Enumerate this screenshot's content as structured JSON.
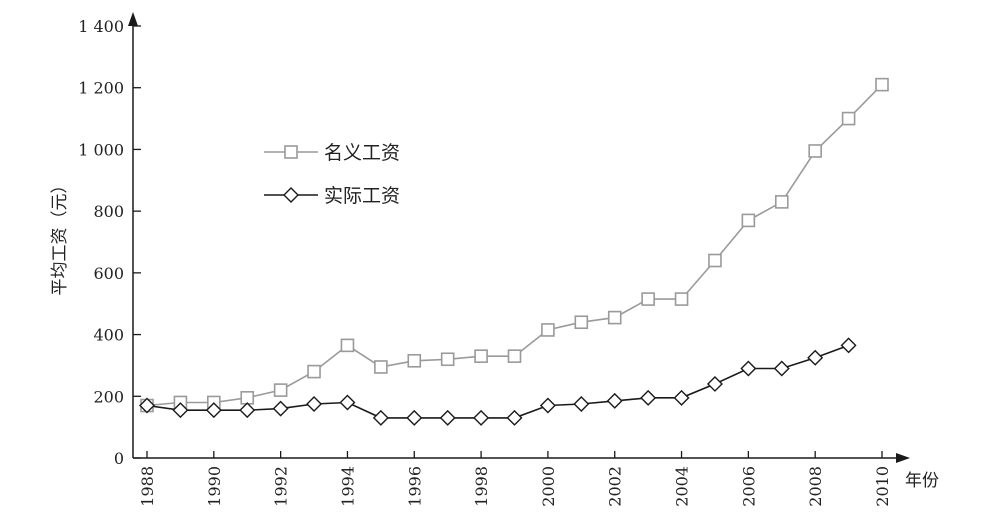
{
  "chart_data": {
    "type": "line",
    "xlabel": "年份",
    "ylabel": "平均工资（元）",
    "xlim": [
      1988,
      2010
    ],
    "ylim": [
      0,
      1400
    ],
    "x_ticks": [
      1988,
      1990,
      1992,
      1994,
      1996,
      1998,
      2000,
      2002,
      2004,
      2006,
      2008,
      2010
    ],
    "y_ticks": [
      0,
      200,
      400,
      600,
      800,
      1000,
      1200,
      1400
    ],
    "y_tick_labels": [
      "0",
      "200",
      "400",
      "600",
      "800",
      "1 000",
      "1 200",
      "1 400"
    ],
    "x_tick_labels": [
      "1988",
      "1990",
      "1992",
      "1994",
      "1996",
      "1998",
      "2000",
      "2002",
      "2004",
      "2006",
      "2008",
      "2010"
    ],
    "grid": false,
    "legend_position": "upper-left",
    "series": [
      {
        "name": "名义工资",
        "marker": "square",
        "color": "#9a9a9a",
        "x": [
          1988,
          1989,
          1990,
          1991,
          1992,
          1993,
          1994,
          1995,
          1996,
          1997,
          1998,
          1999,
          2000,
          2001,
          2002,
          2003,
          2004,
          2005,
          2006,
          2007,
          2008,
          2009,
          2010
        ],
        "values": [
          170,
          180,
          180,
          195,
          220,
          280,
          365,
          295,
          315,
          320,
          330,
          330,
          415,
          440,
          455,
          515,
          515,
          640,
          770,
          830,
          995,
          1100,
          1210
        ]
      },
      {
        "name": "实际工资",
        "marker": "diamond",
        "color": "#1a1a1a",
        "x": [
          1988,
          1989,
          1990,
          1991,
          1992,
          1993,
          1994,
          1995,
          1996,
          1997,
          1998,
          1999,
          2000,
          2001,
          2002,
          2003,
          2004,
          2005,
          2006,
          2007,
          2008,
          2009
        ],
        "values": [
          170,
          155,
          155,
          155,
          160,
          175,
          180,
          130,
          130,
          130,
          130,
          130,
          170,
          175,
          185,
          195,
          195,
          240,
          290,
          290,
          325,
          365
        ]
      }
    ]
  }
}
